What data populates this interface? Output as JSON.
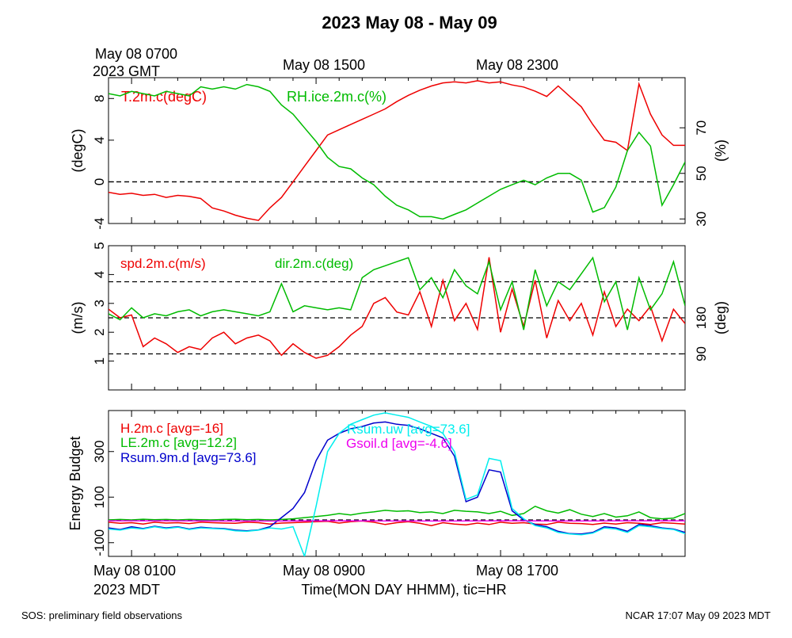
{
  "page": {
    "title": "2023 May 08 - May 09",
    "footer_left": "SOS: preliminary field observations",
    "footer_right": "NCAR 17:07 May 09 2023 MDT",
    "top_time_labels": [
      "May 08 0700",
      "May 08 1500",
      "May 08 2300"
    ],
    "top_zone_label": "2023 GMT",
    "bottom_time_labels": [
      "May 08 0100",
      "May 08 0900",
      "May 08 1700"
    ],
    "bottom_zone_label": "2023 MDT",
    "xlabel": "Time(MON DAY HHMM), tic=HR"
  },
  "colors": {
    "red": "#ee0000",
    "green": "#00bb00",
    "blue": "#0000cc",
    "cyan": "#00eeee",
    "magenta": "#ee00ee",
    "axis": "#000000"
  },
  "chart_data": [
    {
      "type": "line",
      "name": "temperature-humidity",
      "ylabel": "(degC)",
      "ylabel_right": "(%)",
      "xlim": [
        0,
        25
      ],
      "ylim": [
        -4,
        10
      ],
      "yticks": [
        -4,
        0,
        4,
        8
      ],
      "ylim_right": [
        28,
        92
      ],
      "yticks_right": [
        30,
        50,
        70
      ],
      "reference_lines": [
        0
      ],
      "series": [
        {
          "name": "T.2m.c(degC)",
          "axis": "left",
          "color": "#ee0000",
          "x": [
            0,
            0.5,
            1,
            1.5,
            2,
            2.5,
            3,
            3.5,
            4,
            4.5,
            5,
            5.5,
            6,
            6.5,
            7,
            7.5,
            8,
            8.5,
            9,
            9.5,
            10,
            10.5,
            11,
            11.5,
            12,
            12.5,
            13,
            13.5,
            14,
            14.5,
            15,
            15.5,
            16,
            16.5,
            17,
            17.5,
            18,
            18.5,
            19,
            19.5,
            20,
            20.5,
            21,
            21.5,
            22,
            22.5,
            23,
            23.5,
            24,
            24.5,
            25
          ],
          "values": [
            -1,
            -1.2,
            -1.1,
            -1.3,
            -1.2,
            -1.5,
            -1.3,
            -1.4,
            -1.6,
            -2.5,
            -2.8,
            -3.2,
            -3.5,
            -3.7,
            -2.5,
            -1.5,
            0,
            1.5,
            3,
            4.5,
            5,
            5.5,
            6,
            6.5,
            7,
            7.7,
            8.3,
            8.8,
            9.2,
            9.5,
            9.6,
            9.5,
            9.7,
            9.5,
            9.6,
            9.3,
            9.1,
            8.7,
            8.2,
            9.2,
            8.2,
            7.2,
            5.5,
            4,
            3.8,
            3,
            9.4,
            6.5,
            4.5,
            3.5,
            3.5
          ]
        },
        {
          "name": "RH.ice.2m.c(%)",
          "axis": "right",
          "color": "#00bb00",
          "x": [
            0,
            0.5,
            1,
            1.5,
            2,
            2.5,
            3,
            3.5,
            4,
            4.5,
            5,
            5.5,
            6,
            6.5,
            7,
            7.5,
            8,
            8.5,
            9,
            9.5,
            10,
            10.5,
            11,
            11.5,
            12,
            12.5,
            13,
            13.5,
            14,
            14.5,
            15,
            15.5,
            16,
            16.5,
            17,
            17.5,
            18,
            18.5,
            19,
            19.5,
            20,
            20.5,
            21,
            21.5,
            22,
            22.5,
            23,
            23.5,
            24,
            24.5,
            25
          ],
          "values": [
            85,
            84,
            86,
            85,
            84,
            86,
            85,
            84,
            88,
            87,
            88,
            87,
            89,
            88,
            86,
            80,
            76,
            70,
            64,
            57,
            53,
            52,
            48,
            45,
            40,
            36,
            34,
            31,
            31,
            30,
            32,
            34,
            37,
            40,
            43,
            45,
            47,
            45,
            48,
            50,
            50,
            47,
            33,
            35,
            44,
            60,
            68,
            62,
            36,
            45,
            55
          ]
        }
      ]
    },
    {
      "type": "line",
      "name": "wind",
      "ylabel": "(m/s)",
      "ylabel_right": "(deg)",
      "xlim": [
        0,
        25
      ],
      "ylim": [
        0,
        5
      ],
      "yticks": [
        1,
        2,
        3,
        4,
        5
      ],
      "ylim_right": [
        0,
        360
      ],
      "yticks_right": [
        90,
        180
      ],
      "reference_lines": [
        1.25,
        2.5,
        3.75
      ],
      "series": [
        {
          "name": "spd.2m.c(m/s)",
          "axis": "left",
          "color": "#ee0000",
          "x": [
            0,
            0.5,
            1,
            1.5,
            2,
            2.5,
            3,
            3.5,
            4,
            4.5,
            5,
            5.5,
            6,
            6.5,
            7,
            7.5,
            8,
            8.5,
            9,
            9.5,
            10,
            10.5,
            11,
            11.5,
            12,
            12.5,
            13,
            13.5,
            14,
            14.5,
            15,
            15.5,
            16,
            16.5,
            17,
            17.5,
            18,
            18.5,
            19,
            19.5,
            20,
            20.5,
            21,
            21.5,
            22,
            22.5,
            23,
            23.5,
            24,
            24.5,
            25
          ],
          "values": [
            2.8,
            2.5,
            2.6,
            1.5,
            1.8,
            1.6,
            1.3,
            1.5,
            1.4,
            1.8,
            2,
            1.6,
            1.8,
            1.9,
            1.7,
            1.2,
            1.6,
            1.3,
            1.1,
            1.2,
            1.5,
            1.9,
            2.2,
            3,
            3.2,
            2.7,
            2.6,
            3.4,
            2.2,
            3.8,
            2.4,
            3,
            2.1,
            4.6,
            2,
            3.5,
            2.2,
            3.8,
            1.8,
            3.1,
            2.4,
            3,
            1.9,
            3.4,
            2.2,
            2.8,
            2.4,
            2.9,
            1.7,
            2.8,
            2.3
          ]
        },
        {
          "name": "dir.2m.c(deg)",
          "axis": "right",
          "color": "#00bb00",
          "x": [
            0,
            0.5,
            1,
            1.5,
            2,
            2.5,
            3,
            3.5,
            4,
            4.5,
            5,
            5.5,
            6,
            6.5,
            7,
            7.5,
            8,
            8.5,
            9,
            9.5,
            10,
            10.5,
            11,
            11.5,
            12,
            12.5,
            13,
            13.5,
            14,
            14.5,
            15,
            15.5,
            16,
            16.5,
            17,
            17.5,
            18,
            18.5,
            19,
            19.5,
            20,
            20.5,
            21,
            21.5,
            22,
            22.5,
            23,
            23.5,
            24,
            24.5,
            25
          ],
          "values": [
            190,
            175,
            205,
            180,
            190,
            185,
            195,
            200,
            185,
            195,
            200,
            195,
            190,
            185,
            195,
            265,
            195,
            210,
            205,
            200,
            205,
            200,
            280,
            300,
            310,
            320,
            330,
            250,
            280,
            230,
            300,
            260,
            240,
            320,
            200,
            270,
            150,
            300,
            210,
            270,
            250,
            290,
            330,
            220,
            270,
            150,
            280,
            200,
            240,
            320,
            210
          ]
        }
      ]
    },
    {
      "type": "line",
      "name": "energy-budget",
      "ylabel": "Energy Budget",
      "xlim": [
        0,
        25
      ],
      "ylim": [
        -160,
        480
      ],
      "yticks": [
        -100,
        100,
        300
      ],
      "reference_lines": [
        0
      ],
      "series": [
        {
          "name": "H.2m.c [avg=-16]",
          "color": "#ee0000",
          "x": [
            0,
            0.5,
            1,
            1.5,
            2,
            2.5,
            3,
            3.5,
            4,
            4.5,
            5,
            5.5,
            6,
            6.5,
            7,
            7.5,
            8,
            8.5,
            9,
            9.5,
            10,
            10.5,
            11,
            11.5,
            12,
            12.5,
            13,
            13.5,
            14,
            14.5,
            15,
            15.5,
            16,
            16.5,
            17,
            17.5,
            18,
            18.5,
            19,
            19.5,
            20,
            20.5,
            21,
            21.5,
            22,
            22.5,
            23,
            23.5,
            24,
            24.5,
            25
          ],
          "values": [
            -10,
            -15,
            -12,
            -18,
            -10,
            -14,
            -12,
            -16,
            -10,
            -12,
            -14,
            -15,
            -10,
            -12,
            -18,
            -14,
            -12,
            -10,
            -8,
            -6,
            -14,
            -8,
            -5,
            -10,
            -20,
            -12,
            -8,
            -15,
            -25,
            -12,
            -18,
            -22,
            -14,
            -20,
            -10,
            -15,
            -12,
            -18,
            -20,
            -10,
            -15,
            -16,
            -20,
            -14,
            -18,
            -12,
            -15,
            -20,
            -12,
            -15,
            -18
          ]
        },
        {
          "name": "LE.2m.c [avg=12.2]",
          "color": "#00bb00",
          "x": [
            0,
            0.5,
            1,
            1.5,
            2,
            2.5,
            3,
            3.5,
            4,
            4.5,
            5,
            5.5,
            6,
            6.5,
            7,
            7.5,
            8,
            8.5,
            9,
            9.5,
            10,
            10.5,
            11,
            11.5,
            12,
            12.5,
            13,
            13.5,
            14,
            14.5,
            15,
            15.5,
            16,
            16.5,
            17,
            17.5,
            18,
            18.5,
            19,
            19.5,
            20,
            20.5,
            21,
            21.5,
            22,
            22.5,
            23,
            23.5,
            24,
            24.5,
            25
          ],
          "values": [
            0,
            2,
            0,
            3,
            1,
            2,
            0,
            2,
            1,
            0,
            2,
            3,
            1,
            2,
            0,
            2,
            5,
            10,
            15,
            20,
            28,
            22,
            30,
            35,
            42,
            38,
            40,
            32,
            35,
            28,
            42,
            38,
            35,
            28,
            38,
            20,
            28,
            60,
            40,
            30,
            45,
            25,
            15,
            28,
            12,
            18,
            35,
            10,
            5,
            8,
            28
          ]
        },
        {
          "name": "Rsum.9m.d [avg=73.6]",
          "color": "#0000cc",
          "x": [
            0,
            0.5,
            1,
            1.5,
            2,
            2.5,
            3,
            3.5,
            4,
            4.5,
            5,
            5.5,
            6,
            6.5,
            7,
            7.5,
            8,
            8.5,
            9,
            9.5,
            10,
            10.5,
            11,
            11.5,
            12,
            12.5,
            13,
            13.5,
            14,
            14.5,
            15,
            15.5,
            16,
            16.5,
            17,
            17.5,
            18,
            18.5,
            19,
            19.5,
            20,
            20.5,
            21,
            21.5,
            22,
            22.5,
            23,
            23.5,
            24,
            24.5,
            25
          ],
          "values": [
            -35,
            -42,
            -30,
            -38,
            -28,
            -35,
            -30,
            -40,
            -32,
            -36,
            -38,
            -45,
            -48,
            -44,
            -30,
            10,
            50,
            120,
            260,
            350,
            380,
            400,
            410,
            425,
            430,
            420,
            415,
            400,
            380,
            360,
            280,
            80,
            100,
            220,
            210,
            40,
            0,
            -20,
            -30,
            -50,
            -60,
            -62,
            -55,
            -30,
            -35,
            -50,
            -20,
            -25,
            -35,
            -40,
            -55
          ]
        },
        {
          "name": "Rsum.uw [avg=73.6]",
          "color": "#00eeee",
          "x": [
            0,
            0.5,
            1,
            1.5,
            2,
            2.5,
            3,
            3.5,
            4,
            4.5,
            5,
            5.5,
            6,
            6.5,
            7,
            7.5,
            8,
            8.5,
            9,
            9.5,
            10,
            10.5,
            11,
            11.5,
            12,
            12.5,
            13,
            13.5,
            14,
            14.5,
            15,
            15.5,
            16,
            16.5,
            17,
            17.5,
            18,
            18.5,
            19,
            19.5,
            20,
            20.5,
            21,
            21.5,
            22,
            22.5,
            23,
            23.5,
            24,
            24.5,
            25
          ],
          "values": [
            -40,
            -45,
            -35,
            -40,
            -30,
            -38,
            -32,
            -42,
            -35,
            -38,
            -40,
            -48,
            -50,
            -45,
            -35,
            -40,
            -30,
            -160,
            60,
            300,
            380,
            420,
            440,
            460,
            470,
            460,
            450,
            430,
            410,
            380,
            300,
            90,
            110,
            270,
            260,
            50,
            5,
            -25,
            -35,
            -55,
            -62,
            -65,
            -58,
            -35,
            -40,
            -55,
            -25,
            -30,
            -38,
            -42,
            -60
          ]
        },
        {
          "name": "Gsoil.d [avg=-4.6]",
          "color": "#ee00ee",
          "x": [
            0,
            2.5,
            5,
            7.5,
            10,
            12.5,
            15,
            17.5,
            20,
            22.5,
            25
          ],
          "values": [
            -4,
            -4,
            -5,
            -5,
            -4,
            -5,
            -5,
            -4,
            -5,
            -4,
            -4
          ]
        }
      ]
    }
  ]
}
